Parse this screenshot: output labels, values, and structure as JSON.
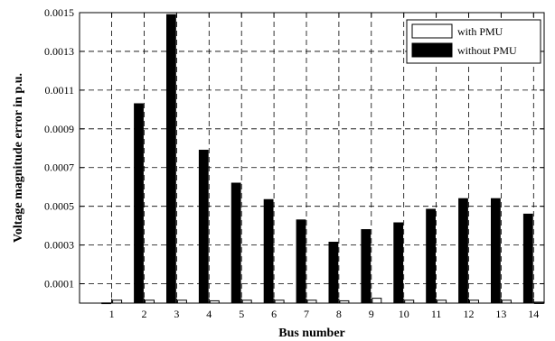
{
  "chart_data": {
    "type": "bar",
    "title": "",
    "xlabel": "Bus number",
    "ylabel": "Voltage magnitude error in p.u.",
    "categories": [
      "1",
      "2",
      "3",
      "4",
      "5",
      "6",
      "7",
      "8",
      "9",
      "10",
      "11",
      "12",
      "13",
      "14"
    ],
    "ylim": [
      0,
      0.0015
    ],
    "yticks": [
      "0.0001",
      "0.0003",
      "0.0005",
      "0.0007",
      "0.0009",
      "0.0011",
      "0.0013",
      "0.0015"
    ],
    "grid": true,
    "legend_position": "top-right",
    "series": [
      {
        "name": "with PMU",
        "color": "#ffffff",
        "values": [
          1.5e-05,
          1.5e-05,
          1.5e-05,
          1.2e-05,
          1.5e-05,
          1.5e-05,
          1.5e-05,
          1.2e-05,
          2.5e-05,
          1.5e-05,
          1.5e-05,
          1.5e-05,
          1.5e-05,
          5e-06
        ]
      },
      {
        "name": "without PMU",
        "color": "#000000",
        "values": [
          1.5e-06,
          0.00103,
          0.00149,
          0.00079,
          0.00062,
          0.000535,
          0.00043,
          0.000315,
          0.00038,
          0.000415,
          0.000485,
          0.00054,
          0.00054,
          0.00046
        ]
      }
    ]
  }
}
